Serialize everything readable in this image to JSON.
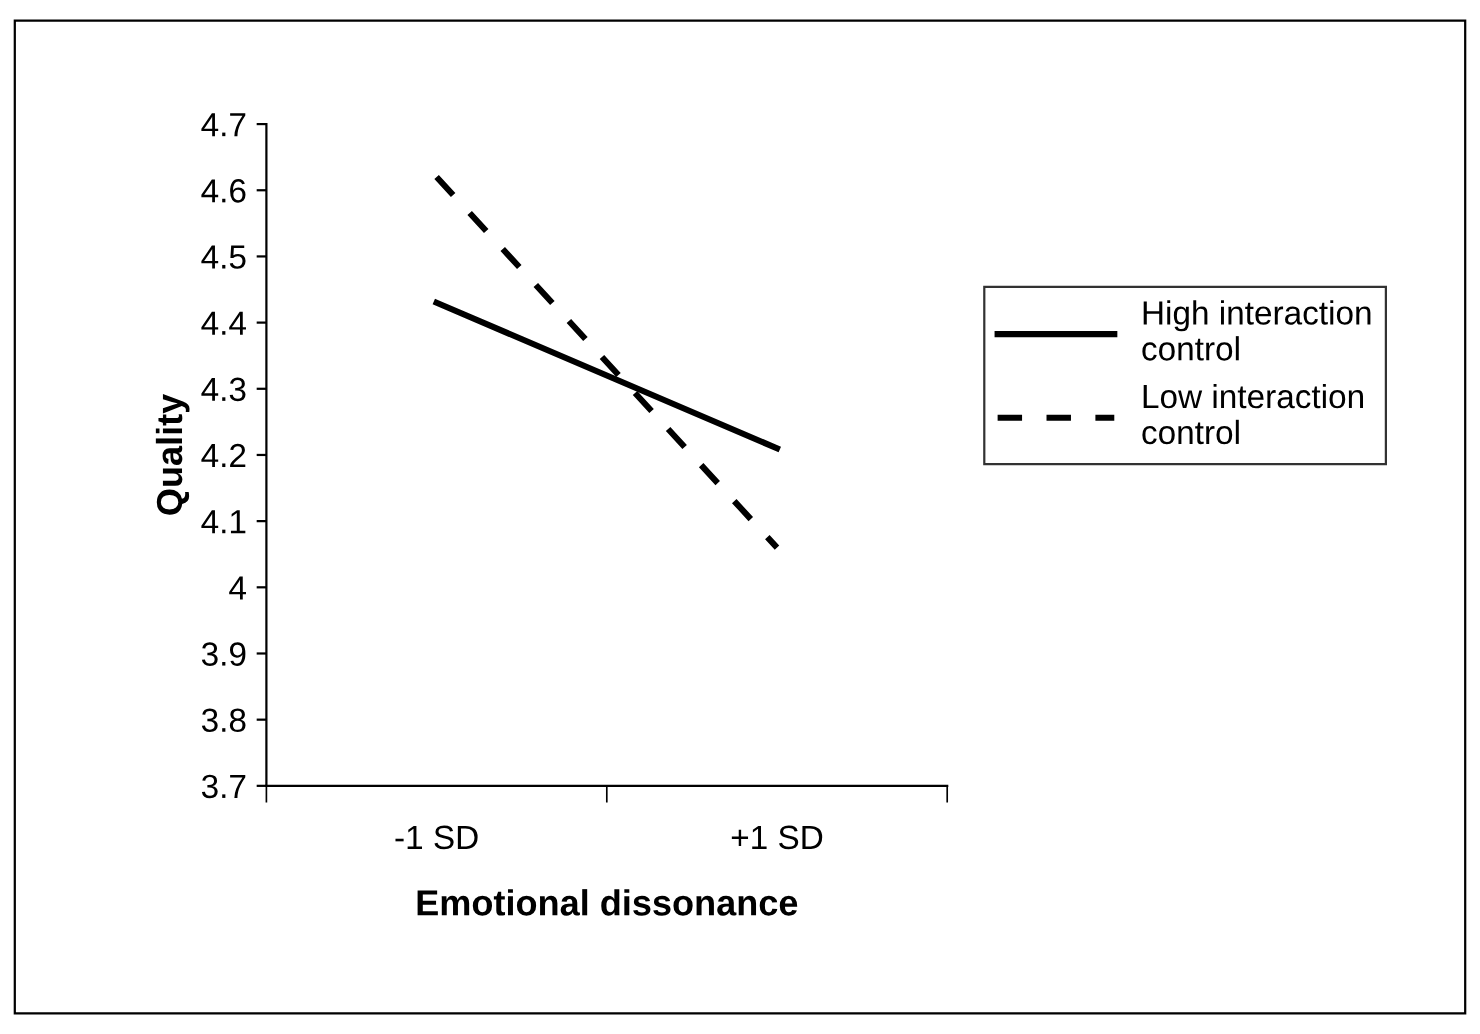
{
  "chart_data": {
    "type": "line",
    "xlabel": "Emotional dissonance",
    "ylabel": "Quality",
    "categories": [
      "-1 SD",
      "+1 SD"
    ],
    "series": [
      {
        "name": "High interaction control",
        "color": "#000000",
        "values": [
          4.43,
          4.21
        ],
        "line_style": "solid"
      },
      {
        "name": "Low interaction control",
        "color": "#000000",
        "values": [
          4.62,
          4.06
        ],
        "line_style": "dashed"
      }
    ],
    "ylim": [
      3.7,
      4.7
    ],
    "yticks": [
      3.7,
      3.8,
      3.9,
      4,
      4.1,
      4.2,
      4.3,
      4.4,
      4.5,
      4.6,
      4.7
    ],
    "grid": false,
    "legend": "right",
    "marker": "none"
  }
}
